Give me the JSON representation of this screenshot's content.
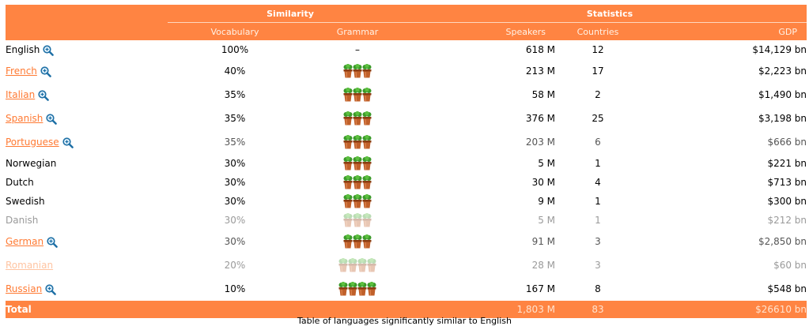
{
  "header": {
    "similarity": "Similarity",
    "statistics": "Statistics",
    "vocabulary": "Vocabulary",
    "grammar": "Grammar",
    "speakers": "Speakers",
    "countries": "Countries",
    "gdp": "GDP"
  },
  "rows": [
    {
      "lang": "English",
      "link": false,
      "zoom": true,
      "vocab": "100%",
      "grammar": "–",
      "pots": 0,
      "speakers": "618 M",
      "countries": "12",
      "gdp": "$14,129 bn",
      "style": "normal"
    },
    {
      "lang": "French",
      "link": true,
      "zoom": true,
      "vocab": "40%",
      "grammar": "",
      "pots": 3,
      "speakers": "213 M",
      "countries": "17",
      "gdp": "$2,223 bn",
      "style": "normal"
    },
    {
      "lang": "Italian",
      "link": true,
      "zoom": true,
      "vocab": "35%",
      "grammar": "",
      "pots": 3,
      "speakers": "58 M",
      "countries": "2",
      "gdp": "$1,490 bn",
      "style": "normal"
    },
    {
      "lang": "Spanish",
      "link": true,
      "zoom": true,
      "vocab": "35%",
      "grammar": "",
      "pots": 3,
      "speakers": "376 M",
      "countries": "25",
      "gdp": "$3,198 bn",
      "style": "normal"
    },
    {
      "lang": "Portuguese",
      "link": true,
      "zoom": true,
      "vocab": "35%",
      "grammar": "",
      "pots": 3,
      "speakers": "203 M",
      "countries": "6",
      "gdp": "$666 bn",
      "style": "mid"
    },
    {
      "lang": "Norwegian",
      "link": false,
      "zoom": false,
      "vocab": "30%",
      "grammar": "",
      "pots": 3,
      "speakers": "5 M",
      "countries": "1",
      "gdp": "$221 bn",
      "style": "normal"
    },
    {
      "lang": "Dutch",
      "link": false,
      "zoom": false,
      "vocab": "30%",
      "grammar": "",
      "pots": 3,
      "speakers": "30 M",
      "countries": "4",
      "gdp": "$713 bn",
      "style": "normal"
    },
    {
      "lang": "Swedish",
      "link": false,
      "zoom": false,
      "vocab": "30%",
      "grammar": "",
      "pots": 3,
      "speakers": "9 M",
      "countries": "1",
      "gdp": "$300 bn",
      "style": "normal"
    },
    {
      "lang": "Danish",
      "link": false,
      "zoom": false,
      "vocab": "30%",
      "grammar": "",
      "pots": 3,
      "speakers": "5 M",
      "countries": "1",
      "gdp": "$212 bn",
      "style": "faded-partial"
    },
    {
      "lang": "German",
      "link": true,
      "zoom": true,
      "vocab": "30%",
      "grammar": "",
      "pots": 3,
      "speakers": "91 M",
      "countries": "3",
      "gdp": "$2,850 bn",
      "style": "mid"
    },
    {
      "lang": "Romanian",
      "link": true,
      "zoom": false,
      "vocab": "20%",
      "grammar": "",
      "pots": 4,
      "speakers": "28 M",
      "countries": "3",
      "gdp": "$60 bn",
      "style": "faded"
    },
    {
      "lang": "Russian",
      "link": true,
      "zoom": true,
      "vocab": "10%",
      "grammar": "",
      "pots": 4,
      "speakers": "167 M",
      "countries": "8",
      "gdp": "$548 bn",
      "style": "normal"
    }
  ],
  "total": {
    "label": "Total",
    "speakers": "1,803 M",
    "countries": "83",
    "gdp": "$26610 bn"
  },
  "caption": "Table of languages significantly similar to English",
  "colors": {
    "header": "#ff8442",
    "link": "#ff7a33",
    "pot": "#c0602a",
    "plant": "#3b9a2a"
  }
}
